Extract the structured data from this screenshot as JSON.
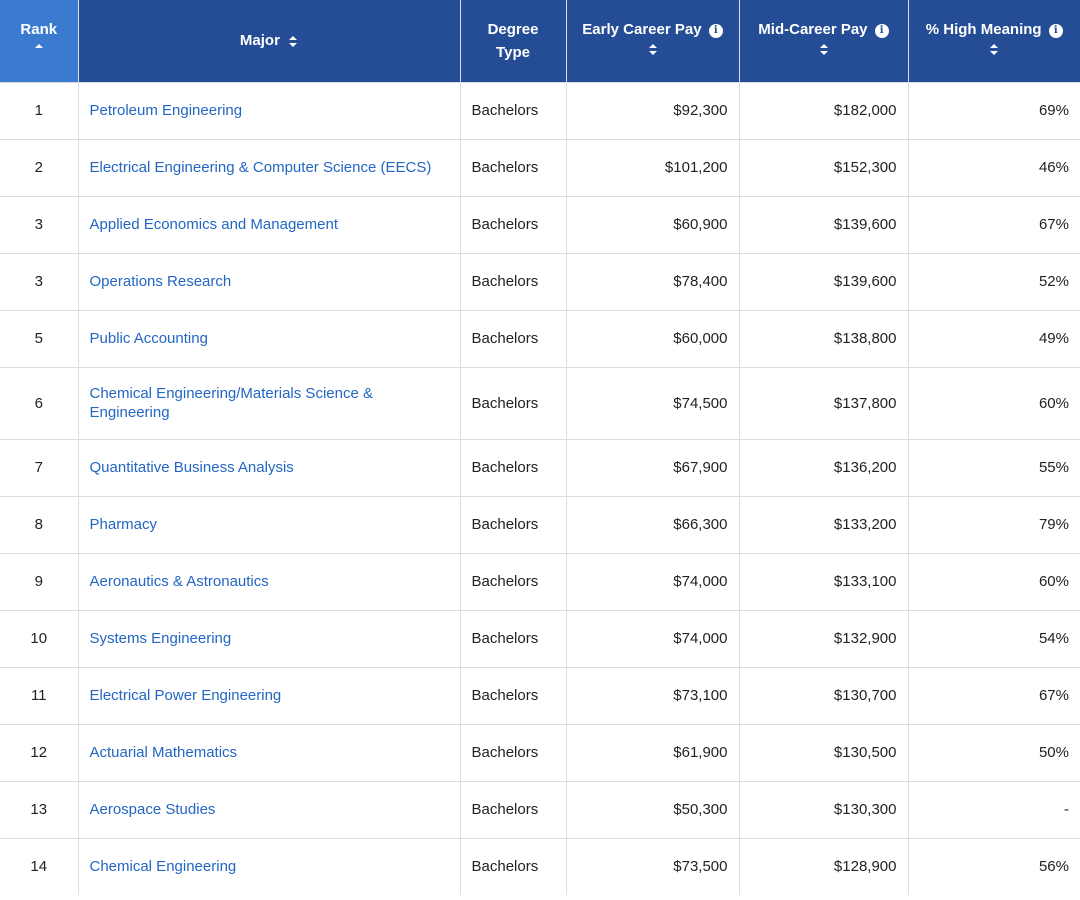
{
  "header": {
    "rank": "Rank",
    "major": "Major",
    "degree_line1": "Degree",
    "degree_line2": "Type",
    "early": "Early Career Pay",
    "mid": "Mid-Career Pay",
    "meaning": "% High Meaning",
    "info_glyph": "i"
  },
  "rows": [
    {
      "rank": "1",
      "major": "Petroleum Engineering",
      "degree": "Bachelors",
      "early": "$92,300",
      "mid": "$182,000",
      "meaning": "69%"
    },
    {
      "rank": "2",
      "major": "Electrical Engineering & Computer Science (EECS)",
      "degree": "Bachelors",
      "early": "$101,200",
      "mid": "$152,300",
      "meaning": "46%"
    },
    {
      "rank": "3",
      "major": "Applied Economics and Management",
      "degree": "Bachelors",
      "early": "$60,900",
      "mid": "$139,600",
      "meaning": "67%"
    },
    {
      "rank": "3",
      "major": "Operations Research",
      "degree": "Bachelors",
      "early": "$78,400",
      "mid": "$139,600",
      "meaning": "52%"
    },
    {
      "rank": "5",
      "major": "Public Accounting",
      "degree": "Bachelors",
      "early": "$60,000",
      "mid": "$138,800",
      "meaning": "49%"
    },
    {
      "rank": "6",
      "major": "Chemical Engineering/Materials Science & Engineering",
      "degree": "Bachelors",
      "early": "$74,500",
      "mid": "$137,800",
      "meaning": "60%"
    },
    {
      "rank": "7",
      "major": "Quantitative Business Analysis",
      "degree": "Bachelors",
      "early": "$67,900",
      "mid": "$136,200",
      "meaning": "55%"
    },
    {
      "rank": "8",
      "major": "Pharmacy",
      "degree": "Bachelors",
      "early": "$66,300",
      "mid": "$133,200",
      "meaning": "79%"
    },
    {
      "rank": "9",
      "major": "Aeronautics & Astronautics",
      "degree": "Bachelors",
      "early": "$74,000",
      "mid": "$133,100",
      "meaning": "60%"
    },
    {
      "rank": "10",
      "major": "Systems Engineering",
      "degree": "Bachelors",
      "early": "$74,000",
      "mid": "$132,900",
      "meaning": "54%"
    },
    {
      "rank": "11",
      "major": "Electrical Power Engineering",
      "degree": "Bachelors",
      "early": "$73,100",
      "mid": "$130,700",
      "meaning": "67%"
    },
    {
      "rank": "12",
      "major": "Actuarial Mathematics",
      "degree": "Bachelors",
      "early": "$61,900",
      "mid": "$130,500",
      "meaning": "50%"
    },
    {
      "rank": "13",
      "major": "Aerospace Studies",
      "degree": "Bachelors",
      "early": "$50,300",
      "mid": "$130,300",
      "meaning": "-"
    },
    {
      "rank": "14",
      "major": "Chemical Engineering",
      "degree": "Bachelors",
      "early": "$73,500",
      "mid": "$128,900",
      "meaning": "56%"
    }
  ]
}
